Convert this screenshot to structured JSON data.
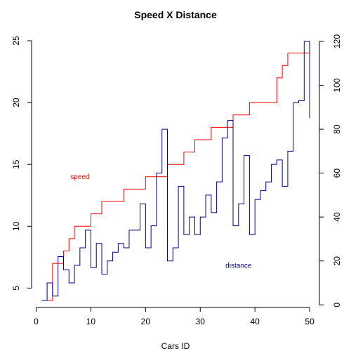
{
  "chart_data": {
    "type": "line",
    "step": true,
    "title": "Speed X Distance",
    "xlabel": "Cars ID",
    "xlim": [
      1,
      50
    ],
    "x_ticks": [
      0,
      10,
      20,
      30,
      40,
      50
    ],
    "left_axis": {
      "ylim": [
        4,
        25
      ],
      "ticks": [
        5,
        10,
        15,
        20,
        25
      ]
    },
    "right_axis": {
      "ylim": [
        2,
        120
      ],
      "ticks": [
        0,
        20,
        40,
        60,
        80,
        100,
        120
      ]
    },
    "series": [
      {
        "key": "speed",
        "axis": "left",
        "color": "#ff0000",
        "values": [
          4,
          4,
          7,
          7,
          8,
          9,
          10,
          10,
          10,
          11,
          11,
          12,
          12,
          12,
          12,
          13,
          13,
          13,
          13,
          14,
          14,
          14,
          14,
          15,
          15,
          15,
          16,
          16,
          17,
          17,
          17,
          18,
          18,
          18,
          18,
          19,
          19,
          19,
          20,
          20,
          20,
          20,
          20,
          22,
          23,
          24,
          24,
          24,
          24,
          25
        ]
      },
      {
        "key": "distance",
        "axis": "right",
        "color": "#00008b",
        "values": [
          2,
          10,
          4,
          22,
          16,
          10,
          18,
          26,
          34,
          17,
          28,
          14,
          20,
          24,
          28,
          26,
          34,
          34,
          46,
          26,
          36,
          60,
          80,
          20,
          26,
          54,
          32,
          40,
          32,
          40,
          50,
          42,
          56,
          76,
          84,
          36,
          46,
          68,
          32,
          48,
          52,
          56,
          64,
          66,
          54,
          70,
          92,
          93,
          120,
          85
        ]
      }
    ],
    "annotations": [
      {
        "text": "speed",
        "color": "#ff0000",
        "x": 8,
        "y_left": 14
      },
      {
        "text": "distance",
        "color": "#00008b",
        "x": 37,
        "y_left": 6.8
      }
    ]
  }
}
